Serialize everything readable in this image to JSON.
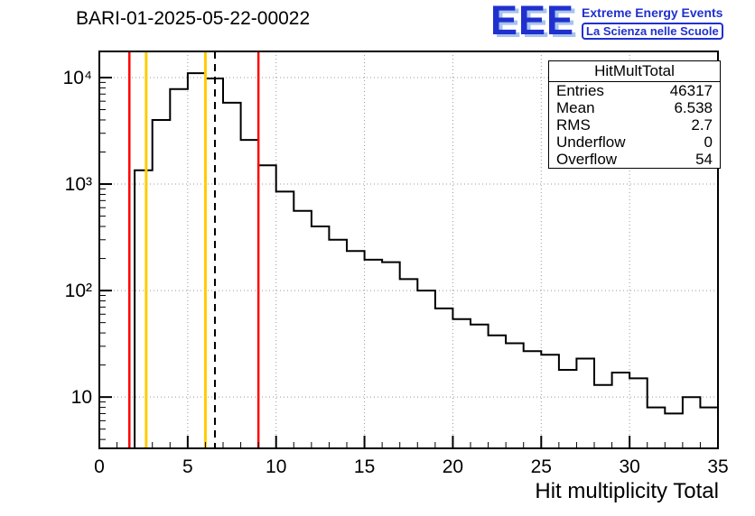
{
  "logo": {
    "acronym": "EEE",
    "line1": "Extreme Energy Events",
    "line2": "La Scienza nelle Scuole",
    "color": "#2030cf",
    "shadow_color": "#a6c3ee"
  },
  "stats_box": {
    "title": "HitMultTotal",
    "rows": [
      {
        "label": "Entries",
        "value": "46317"
      },
      {
        "label": "Mean",
        "value": "6.538"
      },
      {
        "label": "RMS",
        "value": "2.7"
      },
      {
        "label": "Underflow",
        "value": "0"
      },
      {
        "label": "Overflow",
        "value": "54"
      }
    ]
  },
  "chart_data": {
    "type": "bar",
    "title": "BARI-01-2025-05-22-00022",
    "xlabel": "Hit multiplicity Total",
    "ylabel": "",
    "hist_name": "HitMultTotal",
    "bin_start": 0,
    "bin_width": 1,
    "counts": [
      0,
      0,
      1350,
      4000,
      7800,
      11000,
      9800,
      5800,
      2600,
      1500,
      850,
      560,
      400,
      300,
      235,
      195,
      185,
      128,
      100,
      68,
      54,
      48,
      38,
      32,
      27,
      25,
      18,
      23,
      13,
      17,
      15,
      8,
      7,
      10,
      8
    ],
    "xlim": [
      0,
      35
    ],
    "ylog": true,
    "ylim": [
      3.3,
      17600
    ],
    "xticks": [
      0,
      5,
      10,
      15,
      20,
      25,
      30,
      35
    ],
    "yticks": [
      10,
      100,
      1000,
      10000
    ],
    "ytick_labels": [
      "10",
      "10²",
      "10³",
      "10⁴"
    ],
    "grid": true,
    "line_color": "#000000",
    "stats": {
      "entries": 46317,
      "mean": 6.538,
      "rms": 2.7,
      "underflow": 0,
      "overflow": 54
    },
    "vlines": [
      {
        "name": "lower-alarm-line",
        "x": 1.7,
        "color": "#ff0000",
        "style": "solid",
        "width": 2.5
      },
      {
        "name": "lower-warning-line",
        "x": 2.65,
        "color": "#ffcc00",
        "style": "solid",
        "width": 3
      },
      {
        "name": "upper-warning-line",
        "x": 6.0,
        "color": "#ffcc00",
        "style": "solid",
        "width": 3
      },
      {
        "name": "mean-line",
        "x": 6.54,
        "color": "#000000",
        "style": "dashed",
        "width": 2
      },
      {
        "name": "upper-alarm-line",
        "x": 9.0,
        "color": "#ff0000",
        "style": "solid",
        "width": 2.5
      }
    ]
  }
}
